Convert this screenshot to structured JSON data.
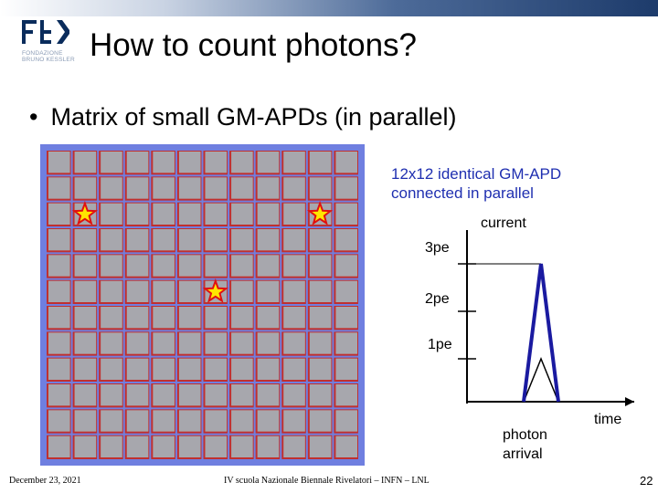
{
  "header": {
    "logo_sub_line1": "FONDAZIONE",
    "logo_sub_line2": "BRUNO KESSLER"
  },
  "slide": {
    "title": "How to count photons?",
    "bullet": "Matrix of small GM-APDs (in parallel)"
  },
  "matrix": {
    "rows": 12,
    "cols": 12,
    "hit_cells": [
      [
        2,
        1
      ],
      [
        2,
        10
      ],
      [
        5,
        6
      ]
    ],
    "colors": {
      "frame": "#6f7fe0",
      "cell": "#a7a7ad",
      "border": "#c0302f",
      "star_fill": "#ffe600",
      "star_stroke": "#e01010"
    }
  },
  "diagram": {
    "note_line1": "12x12 identical GM-APD",
    "note_line2": "connected in parallel",
    "current_label": "current",
    "time_label": "time",
    "levels": [
      "3pe",
      "2pe",
      "1pe"
    ],
    "arrival_line1": "photon",
    "arrival_line2": "arrival",
    "pulse_color": "#1a1aa0"
  },
  "footer": {
    "date": "December 23, 2021",
    "event": "IV scuola Nazionale Biennale Rivelatori – INFN – LNL",
    "page": "22"
  }
}
